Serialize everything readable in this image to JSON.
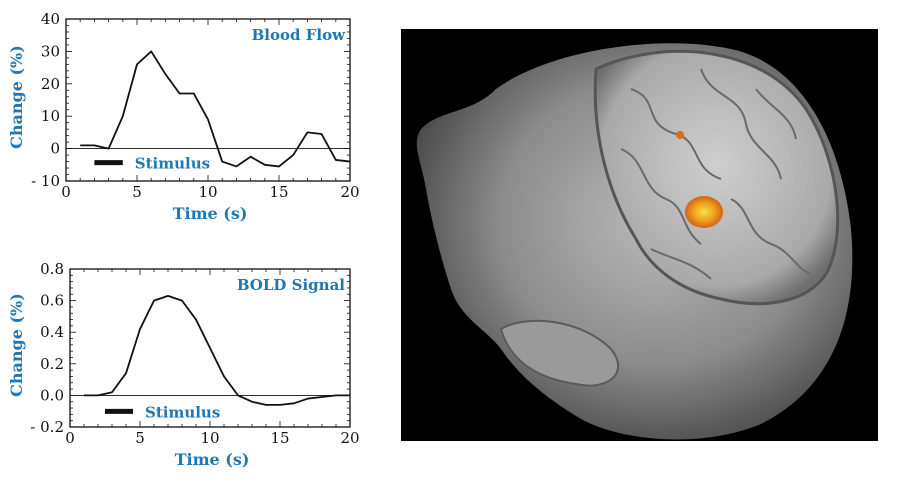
{
  "colors": {
    "label_blue": "#1f77b4",
    "line": "#111111",
    "panel_bg": "#000000"
  },
  "chart_data": [
    {
      "type": "line",
      "title": "Blood Flow",
      "xlabel": "Time (s)",
      "ylabel": "Change (%)",
      "xlim": [
        0,
        20
      ],
      "ylim": [
        -10,
        40
      ],
      "xticks": [
        0,
        5,
        10,
        15,
        20
      ],
      "yticks": [
        -10,
        0,
        10,
        20,
        30,
        40
      ],
      "ytick_labels": [
        "- 10",
        "0",
        "10",
        "20",
        "30",
        "40"
      ],
      "zero_line": true,
      "grid": false,
      "annotation": {
        "text": "Stimulus",
        "bar_x": [
          2,
          4
        ]
      },
      "series": [
        {
          "x": [
            1,
            2,
            3,
            4,
            5,
            6,
            7,
            8,
            9,
            10,
            11,
            12,
            13,
            14,
            15,
            16,
            17,
            18,
            19,
            20
          ],
          "y": [
            1,
            1,
            0,
            10,
            26,
            30,
            23,
            17,
            17,
            9,
            -4,
            -5.5,
            -2.5,
            -5,
            -5.5,
            -2,
            5,
            4.5,
            -3.5,
            -4
          ]
        }
      ]
    },
    {
      "type": "line",
      "title": "BOLD Signal",
      "xlabel": "Time (s)",
      "ylabel": "Change (%)",
      "xlim": [
        0,
        20
      ],
      "ylim": [
        -0.2,
        0.8
      ],
      "xticks": [
        0,
        5,
        10,
        15,
        20
      ],
      "yticks": [
        -0.2,
        0.0,
        0.2,
        0.4,
        0.6,
        0.8
      ],
      "ytick_labels": [
        "- 0.2",
        "0.0",
        "0.2",
        "0.4",
        "0.6",
        "0.8"
      ],
      "zero_line": true,
      "grid": false,
      "annotation": {
        "text": "Stimulus",
        "bar_x": [
          2.5,
          4.5
        ]
      },
      "series": [
        {
          "x": [
            1,
            2,
            3,
            4,
            5,
            6,
            7,
            8,
            9,
            10,
            11,
            12,
            13,
            14,
            15,
            16,
            17,
            18,
            19,
            20
          ],
          "y": [
            0,
            0,
            0.02,
            0.14,
            0.42,
            0.6,
            0.63,
            0.6,
            0.48,
            0.3,
            0.12,
            0.0,
            -0.04,
            -0.06,
            -0.06,
            -0.05,
            -0.02,
            -0.01,
            0,
            0
          ]
        }
      ]
    }
  ]
}
